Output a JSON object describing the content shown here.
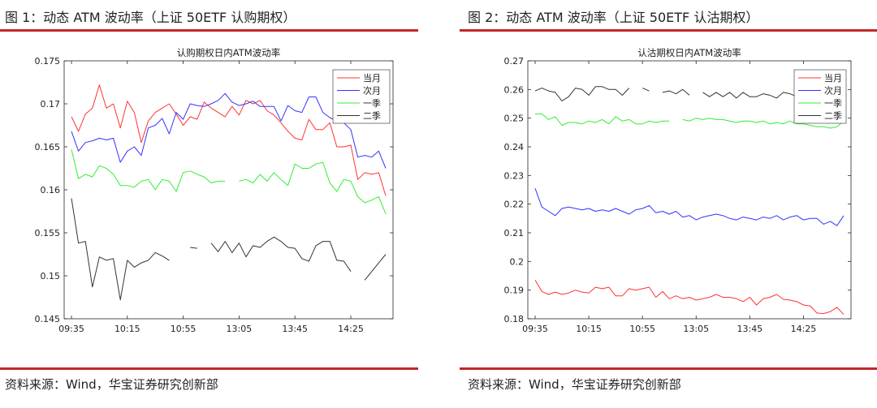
{
  "figures": [
    {
      "caption": "图 1：动态 ATM 波动率（上证 50ETF 认购期权）",
      "source": "资料来源：Wind，华宝证券研究创新部"
    },
    {
      "caption": "图 2：动态 ATM 波动率（上证 50ETF 认沽期权）",
      "source": "资料来源：Wind，华宝证券研究创新部"
    }
  ],
  "chart_data": [
    {
      "type": "line",
      "title": "认购期权日内ATM波动率",
      "xlabel": "",
      "ylabel": "",
      "ylim": [
        0.145,
        0.175
      ],
      "yticks": [
        "0.145",
        "0.15",
        "0.155",
        "0.16",
        "0.165",
        "0.17",
        "0.175"
      ],
      "xtick_positions": [
        0,
        8,
        16,
        24,
        32,
        40
      ],
      "xtick_labels": [
        "09:35",
        "10:15",
        "10:55",
        "13:05",
        "13:45",
        "14:25"
      ],
      "legend_position": "top-right",
      "series": [
        {
          "name": "当月",
          "color": "#ff3333",
          "values": [
            0.1685,
            0.1668,
            0.1688,
            0.1695,
            0.1722,
            0.1695,
            0.17,
            0.1672,
            0.1703,
            0.169,
            0.1655,
            0.168,
            0.169,
            0.1695,
            0.17,
            0.1688,
            0.1675,
            0.1685,
            0.1682,
            0.1702,
            0.1695,
            0.169,
            0.1685,
            0.1697,
            0.1687,
            0.1704,
            0.17,
            0.1704,
            0.1692,
            0.1687,
            0.1678,
            0.1668,
            0.166,
            0.1658,
            0.1682,
            0.167,
            0.167,
            0.1678,
            0.165,
            0.165,
            0.1652,
            0.1612,
            0.162,
            0.1618,
            0.162,
            0.1593
          ]
        },
        {
          "name": "次月",
          "color": "#3333ff",
          "values": [
            0.1668,
            0.1645,
            0.1655,
            0.1657,
            0.166,
            0.1658,
            0.166,
            0.1632,
            0.1645,
            0.165,
            0.164,
            0.1672,
            0.1675,
            0.1683,
            0.1665,
            0.169,
            0.1682,
            0.17,
            0.1698,
            0.1697,
            0.17,
            0.1704,
            0.1712,
            0.1702,
            0.1698,
            0.17,
            0.1703,
            0.1697,
            0.1697,
            0.1697,
            0.168,
            0.1698,
            0.1692,
            0.169,
            0.1708,
            0.1708,
            0.169,
            0.1684,
            0.168,
            0.1678,
            0.167,
            0.1638,
            0.164,
            0.1638,
            0.1645,
            0.1625
          ]
        },
        {
          "name": "一季",
          "color": "#33ee33",
          "values": [
            0.1647,
            0.1613,
            0.1618,
            0.1615,
            0.1628,
            0.1625,
            0.1618,
            0.1605,
            0.1605,
            0.1603,
            0.161,
            0.1612,
            0.16,
            0.1612,
            0.161,
            0.1598,
            0.162,
            0.1622,
            0.1618,
            0.1615,
            0.1608,
            0.161,
            0.161,
            null,
            0.161,
            0.1612,
            0.1608,
            0.1618,
            0.161,
            0.162,
            0.1612,
            0.1605,
            0.163,
            0.1625,
            0.1625,
            0.163,
            0.1632,
            0.1608,
            0.1598,
            0.1612,
            0.161,
            0.1592,
            0.1585,
            0.1588,
            0.1592,
            0.1572
          ]
        },
        {
          "name": "二季",
          "color": "#333333",
          "values": [
            0.159,
            0.1538,
            0.154,
            0.1487,
            0.1522,
            0.1518,
            0.152,
            0.1472,
            0.1518,
            0.151,
            0.1515,
            0.1518,
            0.1527,
            0.1523,
            0.1518,
            null,
            null,
            0.1533,
            0.1532,
            null,
            0.1538,
            0.1528,
            0.154,
            0.1527,
            0.1538,
            0.1522,
            0.1535,
            0.1533,
            0.154,
            0.1545,
            0.154,
            0.1533,
            0.1532,
            0.152,
            0.1517,
            0.1535,
            0.154,
            0.154,
            0.1518,
            0.1517,
            0.1505,
            null,
            0.1495,
            0.1505,
            0.1515,
            0.1525
          ]
        }
      ]
    },
    {
      "type": "line",
      "title": "认沽期权日内ATM波动率",
      "xlabel": "",
      "ylabel": "",
      "ylim": [
        0.18,
        0.27
      ],
      "yticks": [
        "0.18",
        "0.19",
        "0.2",
        "0.21",
        "0.22",
        "0.23",
        "0.24",
        "0.25",
        "0.26",
        "0.27"
      ],
      "xtick_positions": [
        0,
        8,
        16,
        24,
        32,
        40
      ],
      "xtick_labels": [
        "09:35",
        "10:15",
        "10:55",
        "13:05",
        "13:45",
        "14:25"
      ],
      "legend_position": "top-right",
      "series": [
        {
          "name": "当月",
          "color": "#ff3333",
          "values": [
            0.1935,
            0.1895,
            0.1885,
            0.1893,
            0.1885,
            0.189,
            0.19,
            0.1893,
            0.189,
            0.191,
            0.1905,
            0.191,
            0.188,
            0.188,
            0.1905,
            0.19,
            0.1905,
            0.191,
            0.1875,
            0.1895,
            0.187,
            0.188,
            0.187,
            0.1875,
            0.1865,
            0.187,
            0.1875,
            0.1885,
            0.1875,
            0.1875,
            0.187,
            0.186,
            0.1875,
            0.1848,
            0.187,
            0.1875,
            0.1885,
            0.1868,
            0.1865,
            0.186,
            0.1848,
            0.1845,
            0.182,
            0.1818,
            0.1825,
            0.184,
            0.1815
          ]
        },
        {
          "name": "次月",
          "color": "#3333ff",
          "values": [
            0.2255,
            0.219,
            0.2175,
            0.216,
            0.2185,
            0.219,
            0.2185,
            0.218,
            0.2185,
            0.2175,
            0.218,
            0.2175,
            0.2185,
            0.2175,
            0.2165,
            0.218,
            0.2185,
            0.2195,
            0.217,
            0.2175,
            0.2165,
            0.2175,
            0.2155,
            0.216,
            0.2145,
            0.2155,
            0.216,
            0.2165,
            0.216,
            0.215,
            0.2145,
            0.2155,
            0.215,
            0.2145,
            0.2155,
            0.215,
            0.216,
            0.2145,
            0.2155,
            0.216,
            0.2145,
            0.215,
            0.215,
            0.213,
            0.214,
            0.2125,
            0.216
          ]
        },
        {
          "name": "一季",
          "color": "#33ee33",
          "values": [
            0.2515,
            0.2515,
            0.2495,
            0.2505,
            0.2475,
            0.2485,
            0.2485,
            0.248,
            0.249,
            0.2485,
            0.2495,
            0.248,
            0.2505,
            0.249,
            0.2495,
            0.248,
            0.248,
            0.249,
            0.2485,
            0.249,
            0.249,
            null,
            0.2495,
            0.249,
            0.25,
            0.2495,
            0.25,
            0.2495,
            0.2495,
            0.249,
            0.2485,
            0.249,
            0.249,
            0.2485,
            0.249,
            0.248,
            0.2485,
            0.248,
            0.249,
            0.248,
            0.248,
            0.2475,
            0.247,
            0.247,
            0.2465,
            0.247,
            0.249
          ]
        },
        {
          "name": "二季",
          "color": "#333333",
          "values": [
            0.2595,
            0.2605,
            0.2595,
            0.259,
            0.256,
            0.2575,
            0.2605,
            0.26,
            0.258,
            0.261,
            0.261,
            0.26,
            0.26,
            0.258,
            0.2605,
            null,
            0.2605,
            0.2595,
            null,
            0.259,
            0.2595,
            0.2585,
            0.26,
            0.258,
            null,
            0.259,
            0.2575,
            0.259,
            0.2575,
            0.259,
            0.257,
            0.259,
            0.2575,
            0.2575,
            0.2585,
            0.258,
            0.257,
            0.259,
            0.2585,
            0.2575,
            0.258,
            0.2575,
            0.258,
            0.258,
            0.257,
            0.258,
            0.258
          ]
        }
      ]
    }
  ]
}
